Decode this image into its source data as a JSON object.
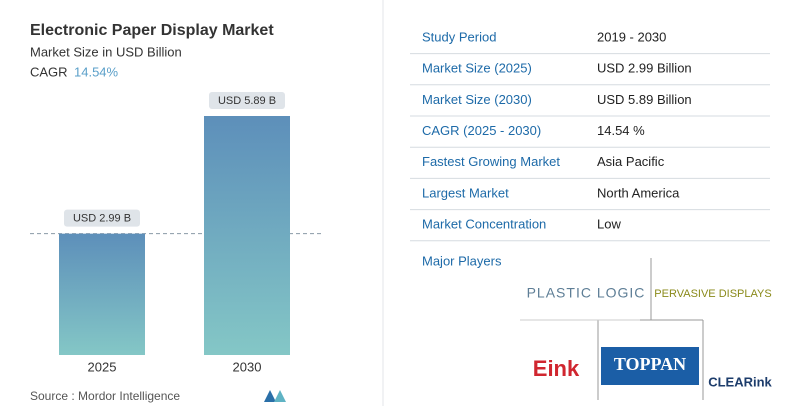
{
  "chart_data": {
    "type": "bar",
    "title": "Electronic Paper Display Market",
    "subtitle": "Market Size in USD Billion",
    "cagr_label": "CAGR",
    "cagr_value": "14.54%",
    "categories": [
      "2025",
      "2030"
    ],
    "values": [
      2.99,
      5.89
    ],
    "value_labels": [
      "USD 2.99 B",
      "USD 5.89 B"
    ],
    "source": "Source :  Mordor Intelligence"
  },
  "table": {
    "rows": [
      [
        "Study Period",
        "2019 - 2030"
      ],
      [
        "Market Size (2025)",
        "USD 2.99 Billion"
      ],
      [
        "Market Size (2030)",
        "USD 5.89 Billion"
      ],
      [
        "CAGR (2025 - 2030)",
        "14.54 %"
      ],
      [
        "Fastest Growing Market",
        "Asia Pacific"
      ],
      [
        "Largest Market",
        "North America"
      ],
      [
        "Market Concentration",
        "Low"
      ]
    ]
  },
  "major_players": {
    "title": "Major Players",
    "players": [
      "PLASTIC LOGIC",
      "PERVASIVE DISPLAYS",
      "Eink",
      "TOPPAN",
      "CLEARink"
    ]
  }
}
